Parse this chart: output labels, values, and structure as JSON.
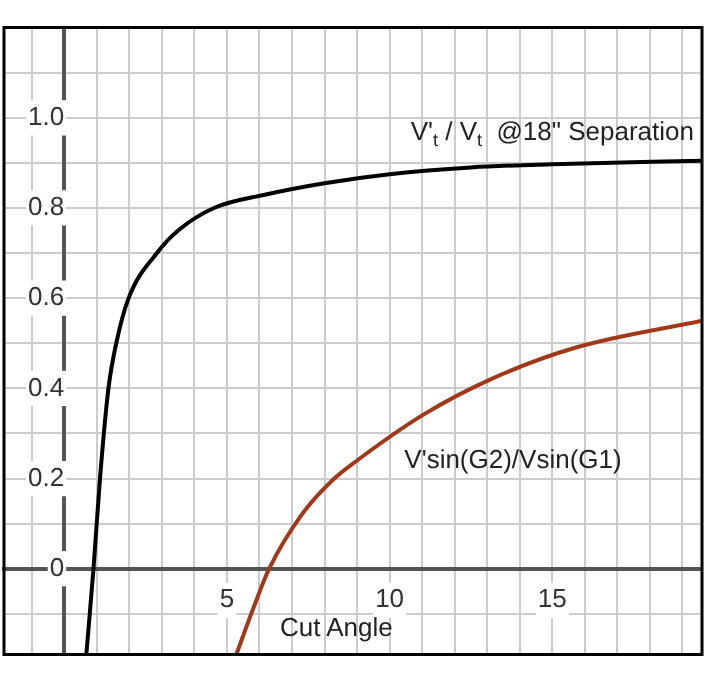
{
  "chart_data": {
    "type": "line",
    "xlabel": "Cut Angle",
    "xlim": [
      -1.85,
      19.6
    ],
    "ylim": [
      -0.19,
      1.2
    ],
    "xticks": [
      {
        "value": -1,
        "label": null
      },
      {
        "value": 0,
        "label": null
      },
      {
        "value": 1,
        "label": null
      },
      {
        "value": 2,
        "label": null
      },
      {
        "value": 3,
        "label": null
      },
      {
        "value": 4,
        "label": null
      },
      5,
      {
        "value": 6,
        "label": null
      },
      {
        "value": 7,
        "label": null
      },
      {
        "value": 8,
        "label": null
      },
      {
        "value": 9,
        "label": null
      },
      10,
      {
        "value": 11,
        "label": null
      },
      {
        "value": 12,
        "label": null
      },
      {
        "value": 13,
        "label": null
      },
      {
        "value": 14,
        "label": null
      },
      15,
      {
        "value": 16,
        "label": null
      },
      {
        "value": 17,
        "label": null
      },
      {
        "value": 18,
        "label": null
      },
      {
        "value": 19,
        "label": null
      }
    ],
    "yticks": [
      {
        "value": -0.1,
        "label": null
      },
      0,
      {
        "value": 0.1,
        "label": null
      },
      {
        "value": 0.2,
        "label": "0.2"
      },
      {
        "value": 0.3,
        "label": null
      },
      {
        "value": 0.4,
        "label": "0.4"
      },
      {
        "value": 0.5,
        "label": null
      },
      {
        "value": 0.6,
        "label": "0.6"
      },
      {
        "value": 0.7,
        "label": null
      },
      {
        "value": 0.8,
        "label": "0.8"
      },
      {
        "value": 0.9,
        "label": null
      },
      {
        "value": 1.0,
        "label": "1.0"
      },
      {
        "value": 1.1,
        "label": null
      }
    ],
    "grid": true,
    "legend": false,
    "marker": "none",
    "line_style": "solid",
    "series": [
      {
        "name": "V'$_{t}$ / V$_{t}$  @18\" Separation",
        "color": "#000000",
        "x": [
          0.68,
          0.9,
          1.1,
          1.36,
          1.6,
          1.98,
          2.85,
          3.5,
          4.6,
          6.2,
          8,
          10,
          12.5,
          15,
          19.6
        ],
        "values": [
          -0.19,
          0,
          0.2,
          0.4,
          0.5,
          0.6,
          0.7,
          0.75,
          0.8,
          0.83,
          0.855,
          0.875,
          0.89,
          0.897,
          0.905
        ]
      },
      {
        "name": "V'sin(G2)/Vsin(G1)",
        "color": "#a0381a",
        "x": [
          5.29,
          5.8,
          6.3,
          7.3,
          8.3,
          9,
          11,
          13.1,
          15.7,
          19.6
        ],
        "values": [
          -0.19,
          -0.09,
          0,
          0.12,
          0.2,
          0.24,
          0.34,
          0.42,
          0.49,
          0.55
        ]
      }
    ]
  }
}
